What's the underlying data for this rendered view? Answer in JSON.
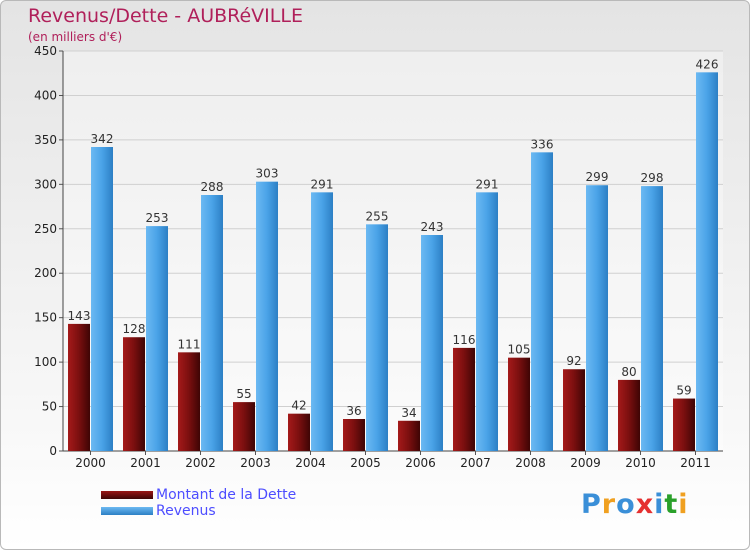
{
  "header": {
    "title": "Revenus/Dette - AUBRéVILLE",
    "subtitle": "(en milliers d'€)"
  },
  "legend": {
    "items": [
      {
        "label": "Montant de la Dette",
        "color": "#6b0c0c"
      },
      {
        "label": "Revenus",
        "color": "#4aa3e8"
      }
    ]
  },
  "logo": {
    "text": "Proxiti",
    "colors": [
      "#3a8fd8",
      "#f0a020",
      "#3a8fd8",
      "#e53030",
      "#3a8fd8",
      "#2aa02a",
      "#f0a020"
    ]
  },
  "chart_data": {
    "type": "bar",
    "categories": [
      "2000",
      "2001",
      "2002",
      "2003",
      "2004",
      "2005",
      "2006",
      "2007",
      "2008",
      "2009",
      "2010",
      "2011"
    ],
    "series": [
      {
        "name": "Montant de la Dette",
        "color": "#6b0c0c",
        "values": [
          143,
          128,
          111,
          55,
          42,
          36,
          34,
          116,
          105,
          92,
          80,
          59
        ]
      },
      {
        "name": "Revenus",
        "color": "#4aa3e8",
        "values": [
          342,
          253,
          288,
          303,
          291,
          255,
          243,
          291,
          336,
          299,
          298,
          426
        ]
      }
    ],
    "ylim": [
      0,
      450
    ],
    "yticks": [
      0,
      50,
      100,
      150,
      200,
      250,
      300,
      350,
      400,
      450
    ],
    "grid": true
  }
}
